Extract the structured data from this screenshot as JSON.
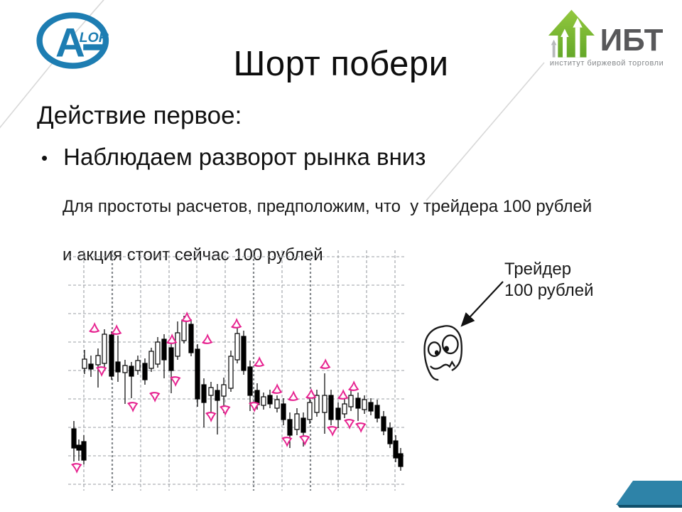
{
  "slide": {
    "title": "Шорт побери",
    "heading": "Действие первое:",
    "bullet_marker": "•",
    "bullet": "Наблюдаем разворот рынка вниз",
    "body_line1": "Для простоты расчетов, предположим, что  у трейдера 100 рублей",
    "body_line2": "и акция стоит сейчас 100 рублей"
  },
  "logos": {
    "alor": {
      "letter": "A",
      "rest": "LOR",
      "color": "#1d7db2"
    },
    "ibt": {
      "name": "ИБТ",
      "subtitle": "институт биржевой торговли",
      "green_light": "#93c83e",
      "green_dark": "#64a829",
      "text_color": "#58585a",
      "subtitle_color": "#84878a"
    }
  },
  "annotation": {
    "line1": "Трейдер",
    "line2": "100 рублей"
  },
  "decor": {
    "accent_color": "#2e83a8",
    "accent_edge_color": "#10506b",
    "faint_line_color": "#d8d8d8"
  },
  "chart_data": {
    "type": "candlestick",
    "title": "",
    "xlabel": "",
    "ylabel": "",
    "notes": "Price chart with Bill Williams style fractal arrows; no axis labels visible. Coordinates are screenshot pixels, y grows downward.",
    "origin": [
      90,
      348
    ],
    "colors": {
      "up_candle_fill": "#ffffff",
      "down_candle_fill": "#000000",
      "candle_outline": "#000000",
      "fractal": "#e6218f",
      "grid": "#9b9fa4",
      "grid_thick": "#84888c"
    },
    "grid": {
      "x_range": [
        96,
        572
      ],
      "y_range": [
        352,
        690
      ],
      "v_lines": [
        118,
        158,
        198,
        238,
        277,
        317,
        357,
        397,
        437,
        476,
        516,
        556
      ],
      "v_thick": [
        158,
        357,
        437
      ],
      "h_lines": [
        361,
        401,
        441,
        481,
        521,
        561,
        601,
        641,
        681
      ]
    },
    "candle_format": [
      "x",
      "wick_top",
      "body_top",
      "body_bottom",
      "wick_bottom",
      "h=hollow/f=filled"
    ],
    "prelude_candles": [
      [
        104,
        592,
        603,
        630,
        649,
        "f"
      ],
      [
        111,
        618,
        626,
        633,
        648,
        "f"
      ],
      [
        118,
        612,
        621,
        647,
        653,
        "f"
      ]
    ],
    "candles": [
      [
        119,
        492,
        505,
        518,
        526,
        "h"
      ],
      [
        128,
        500,
        512,
        519,
        530,
        "f"
      ],
      [
        138,
        490,
        500,
        513,
        545,
        "h"
      ],
      [
        147,
        463,
        470,
        511,
        516,
        "h"
      ],
      [
        157,
        466,
        471,
        529,
        534,
        "f"
      ],
      [
        166,
        472,
        509,
        523,
        537,
        "f"
      ],
      [
        176,
        506,
        514,
        524,
        568,
        "h"
      ],
      [
        185,
        509,
        515,
        529,
        560,
        "f"
      ],
      [
        194,
        500,
        507,
        521,
        527,
        "h"
      ],
      [
        204,
        504,
        511,
        534,
        541,
        "f"
      ],
      [
        213,
        489,
        494,
        518,
        523,
        "h"
      ],
      [
        222,
        474,
        481,
        512,
        517,
        "h"
      ],
      [
        231,
        470,
        477,
        506,
        532,
        "f"
      ],
      [
        241,
        483,
        489,
        521,
        553,
        "f"
      ],
      [
        250,
        452,
        468,
        501,
        506,
        "h"
      ],
      [
        259,
        444,
        450,
        479,
        483,
        "h"
      ],
      [
        269,
        449,
        456,
        496,
        501,
        "f"
      ],
      [
        278,
        484,
        491,
        561,
        572,
        "f"
      ],
      [
        287,
        532,
        541,
        566,
        601,
        "f"
      ],
      [
        297,
        537,
        545,
        556,
        591,
        "h"
      ],
      [
        306,
        540,
        549,
        563,
        611,
        "f"
      ],
      [
        315,
        531,
        541,
        557,
        581,
        "h"
      ],
      [
        325,
        493,
        501,
        546,
        551,
        "h"
      ],
      [
        334,
        461,
        469,
        506,
        511,
        "h"
      ],
      [
        343,
        465,
        473,
        521,
        527,
        "f"
      ],
      [
        352,
        507,
        516,
        556,
        578,
        "f"
      ],
      [
        362,
        539,
        549,
        569,
        576,
        "f"
      ],
      [
        371,
        552,
        558,
        570,
        576,
        "h"
      ],
      [
        380,
        548,
        556,
        568,
        574,
        "f"
      ],
      [
        390,
        556,
        562,
        574,
        580,
        "h"
      ],
      [
        399,
        560,
        568,
        590,
        598,
        "f"
      ],
      [
        408,
        580,
        590,
        612,
        630,
        "f"
      ],
      [
        418,
        574,
        582,
        604,
        612,
        "h"
      ],
      [
        427,
        580,
        588,
        608,
        628,
        "f"
      ],
      [
        436,
        560,
        566,
        590,
        596,
        "h"
      ],
      [
        446,
        548,
        556,
        580,
        586,
        "h"
      ],
      [
        457,
        525,
        556,
        580,
        610,
        "h"
      ],
      [
        466,
        548,
        556,
        590,
        598,
        "f"
      ],
      [
        476,
        566,
        574,
        590,
        602,
        "f"
      ],
      [
        485,
        560,
        568,
        582,
        588,
        "h"
      ],
      [
        494,
        548,
        556,
        572,
        578,
        "h"
      ],
      [
        504,
        552,
        560,
        574,
        592,
        "f"
      ],
      [
        513,
        556,
        562,
        576,
        582,
        "h"
      ],
      [
        522,
        560,
        566,
        578,
        584,
        "f"
      ],
      [
        531,
        562,
        570,
        588,
        594,
        "f"
      ],
      [
        540,
        578,
        586,
        606,
        612,
        "f"
      ],
      [
        549,
        594,
        602,
        624,
        630,
        "f"
      ],
      [
        557,
        612,
        620,
        644,
        650,
        "f"
      ],
      [
        564,
        630,
        638,
        656,
        662,
        "f"
      ]
    ],
    "fractals_up": [
      [
        133,
        461
      ],
      [
        164,
        464
      ],
      [
        242,
        477
      ],
      [
        263,
        446
      ],
      [
        292,
        477
      ],
      [
        333,
        455
      ],
      [
        365,
        509
      ],
      [
        390,
        547
      ],
      [
        413,
        557
      ],
      [
        438,
        554
      ],
      [
        458,
        512
      ],
      [
        483,
        555
      ],
      [
        498,
        543
      ]
    ],
    "fractals_down": [
      [
        108,
        658
      ],
      [
        143,
        522
      ],
      [
        187,
        572
      ],
      [
        218,
        558
      ],
      [
        247,
        536
      ],
      [
        297,
        586
      ],
      [
        317,
        577
      ],
      [
        358,
        572
      ],
      [
        404,
        621
      ],
      [
        429,
        619
      ],
      [
        468,
        606
      ],
      [
        492,
        596
      ],
      [
        508,
        601
      ]
    ]
  }
}
